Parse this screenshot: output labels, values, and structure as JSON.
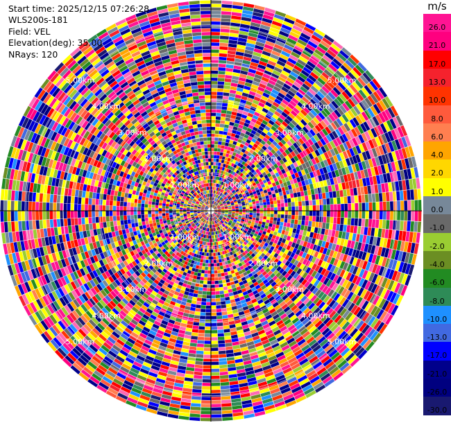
{
  "info": {
    "start_time": "Start time: 2025/12/15 07:26:28",
    "instrument": "WLS200s-181",
    "field": "Field: VEL",
    "elevation": "Elevation(deg): 35.00",
    "nrays": "NRays: 120"
  },
  "colorbar": {
    "unit": "m/s",
    "ticks": [
      "26.0",
      "21.0",
      "17.0",
      "13.0",
      "10.0",
      "8.0",
      "6.0",
      "4.0",
      "2.0",
      "1.0",
      "0.0",
      "-1.0",
      "-2.0",
      "-4.0",
      "-6.0",
      "-8.0",
      "-10.0",
      "-13.0",
      "-17.0",
      "-21.0",
      "-26.0",
      "-30.0"
    ],
    "colors": [
      "#ff1493",
      "#ff007f",
      "#ff0000",
      "#f5222d",
      "#ff3300",
      "#ff5a3c",
      "#ff7f50",
      "#ffa500",
      "#ffd700",
      "#ffff00",
      "#778899",
      "#696969",
      "#9acd32",
      "#6b8e23",
      "#228b22",
      "#2e8b57",
      "#1e90ff",
      "#4169e1",
      "#0000ff",
      "#00008b",
      "#000080",
      "#191970"
    ]
  },
  "chart_data": {
    "type": "heatmap",
    "projection": "polar-ppi",
    "nrays": 120,
    "range_rings_km": [
      1.0,
      2.0,
      3.0,
      4.0,
      5.0
    ],
    "ring_labels": [
      "1.00km",
      "2.00km",
      "3.00km",
      "4.00km",
      "5.00km"
    ],
    "max_range_km": 5.7,
    "gates_per_ray": 60,
    "value_range": [
      -30.0,
      30.0
    ]
  }
}
